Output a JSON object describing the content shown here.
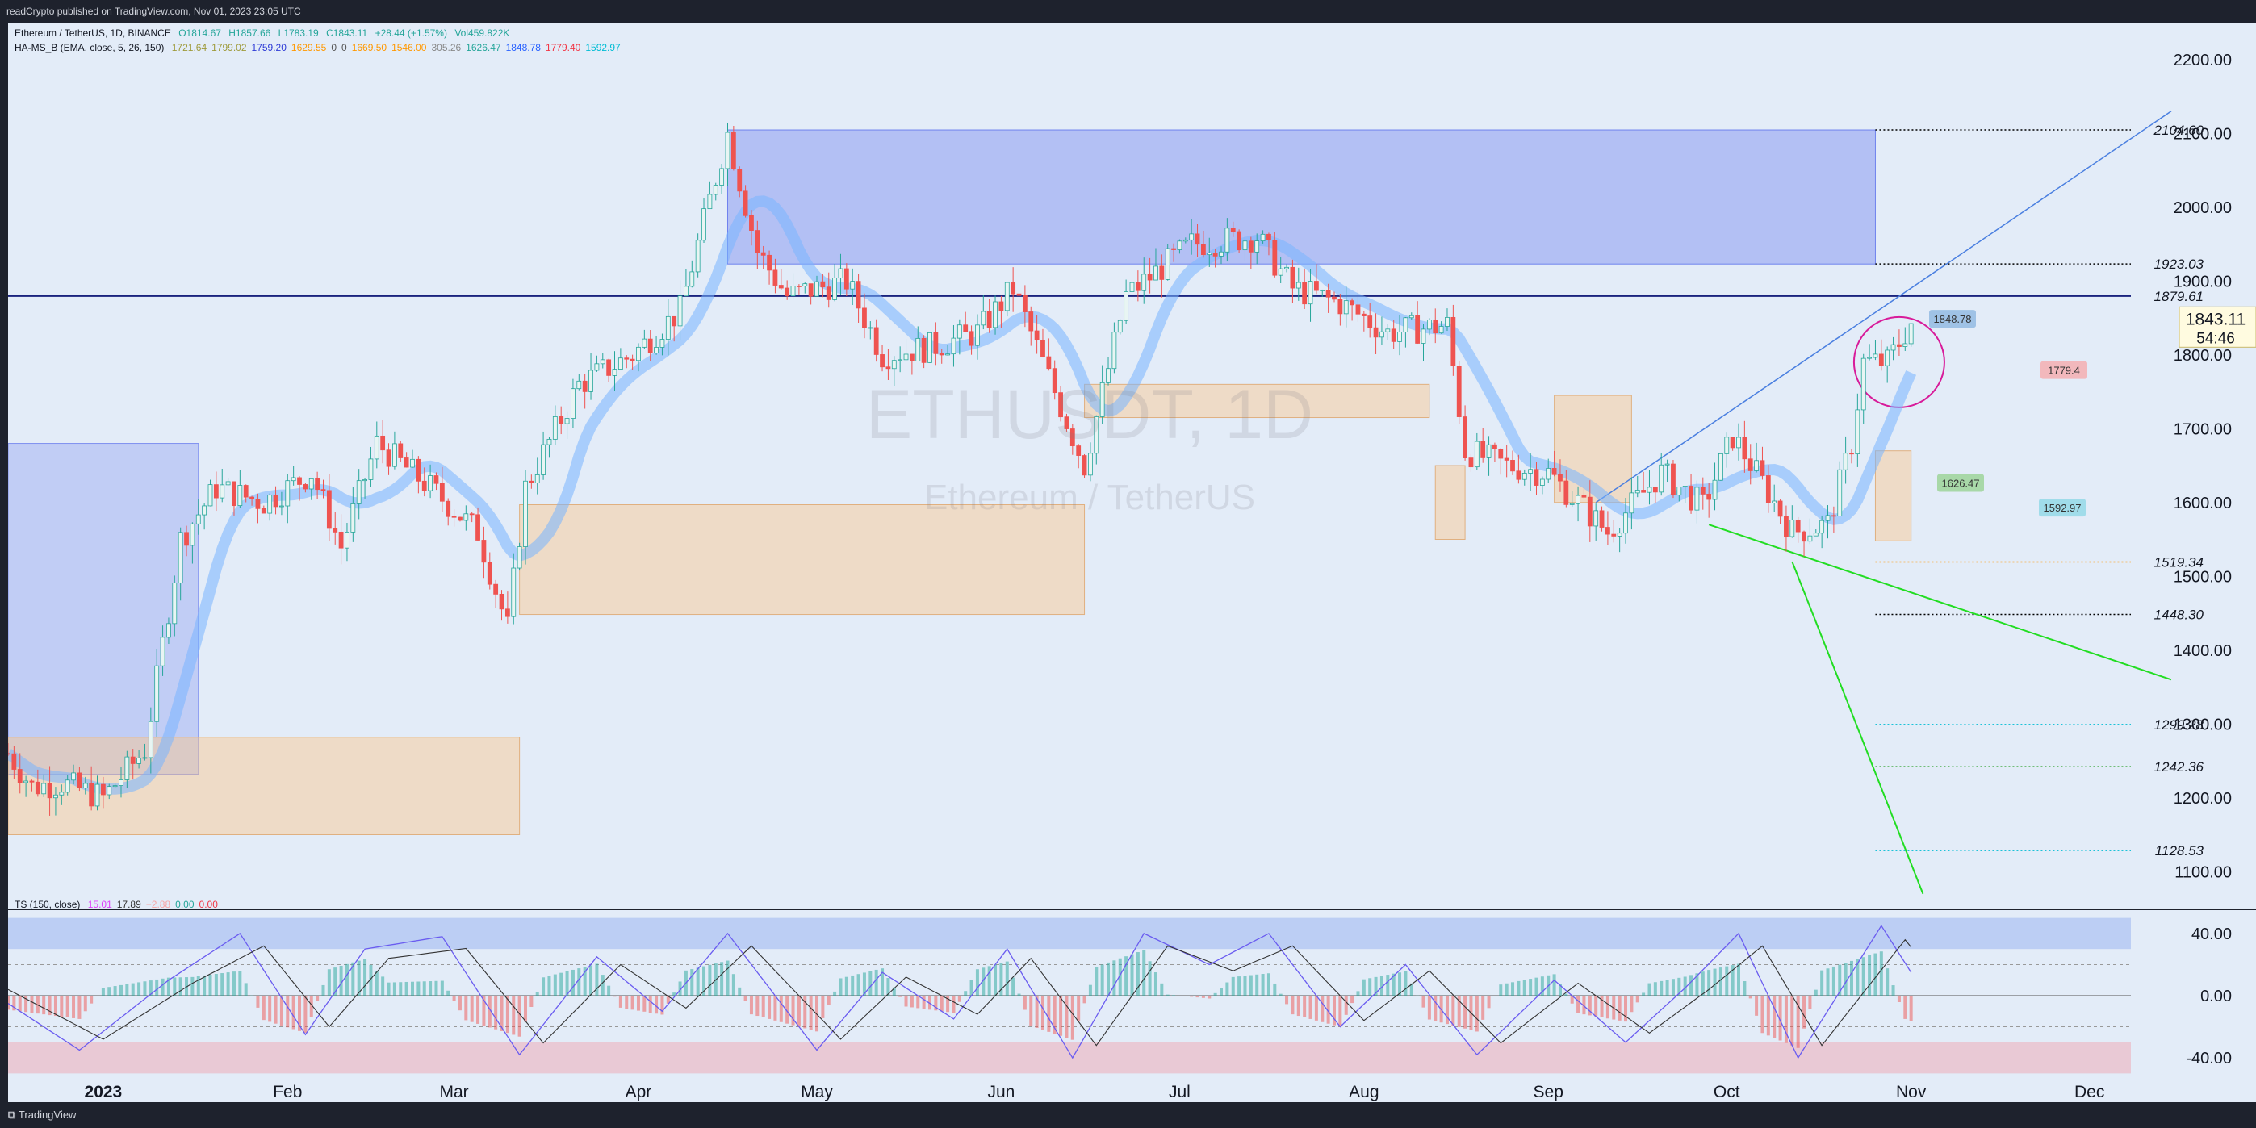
{
  "header": {
    "published": "readCrypto published on TradingView.com, Nov 01, 2023 23:05 UTC"
  },
  "footer": {
    "brand": "TradingView"
  },
  "legend": {
    "symbol": "Ethereum / TetherUS, 1D, BINANCE",
    "open": "O1814.67",
    "high": "H1857.66",
    "low": "L1783.19",
    "close": "C1843.11",
    "change": "+28.44 (+1.57%)",
    "volume": "Vol459.822K",
    "indicator_name": "HA-MS_B (EMA, close, 5, 26, 150)",
    "indicator_values": [
      {
        "text": "1721.64",
        "color": "#9e9a3a"
      },
      {
        "text": "1799.02",
        "color": "#9e9a3a"
      },
      {
        "text": "1759.20",
        "color": "#2e3bd6"
      },
      {
        "text": "1629.55",
        "color": "#ff9800"
      },
      {
        "text": "0",
        "color": "#555"
      },
      {
        "text": "0",
        "color": "#555"
      },
      {
        "text": "1669.50",
        "color": "#ff9800"
      },
      {
        "text": "1546.00",
        "color": "#ff9800"
      },
      {
        "text": "305.26",
        "color": "#888"
      },
      {
        "text": "1626.47",
        "color": "#26a69a"
      },
      {
        "text": "1848.78",
        "color": "#2962ff"
      },
      {
        "text": "1779.40",
        "color": "#f23645"
      },
      {
        "text": "1592.97",
        "color": "#00bcd4"
      }
    ],
    "osc_name": "TS (150, close)",
    "osc_values": [
      {
        "text": "15.01",
        "color": "#e040fb"
      },
      {
        "text": "17.89",
        "color": "#333"
      },
      {
        "text": "−2.88",
        "color": "#f7a6a6"
      },
      {
        "text": "0.00",
        "color": "#26a69a"
      },
      {
        "text": "0.00",
        "color": "#f23645"
      }
    ]
  },
  "watermark": {
    "symbol": "ETHUSDT, 1D",
    "name": "Ethereum / TetherUS"
  },
  "last_price": {
    "value": "1843.11",
    "countdown": "54:46"
  },
  "chart_data": {
    "type": "candlestick",
    "yaxis": {
      "ylim": [
        1050,
        2250
      ],
      "ticks": [
        "1100.00",
        "1200.00",
        "1300.00",
        "1400.00",
        "1500.00",
        "1600.00",
        "1700.00",
        "1800.00",
        "1900.00",
        "2000.00",
        "2100.00",
        "2200.00"
      ]
    },
    "xaxis": {
      "range": [
        "2022-12-16",
        "2023-12-10"
      ],
      "ticks": [
        {
          "date": "2023-01-01",
          "label": "2023"
        },
        {
          "date": "2023-02-01",
          "label": "Feb"
        },
        {
          "date": "2023-03-01",
          "label": "Mar"
        },
        {
          "date": "2023-04-01",
          "label": "Apr"
        },
        {
          "date": "2023-05-01",
          "label": "May"
        },
        {
          "date": "2023-06-01",
          "label": "Jun"
        },
        {
          "date": "2023-07-01",
          "label": "Jul"
        },
        {
          "date": "2023-08-01",
          "label": "Aug"
        },
        {
          "date": "2023-09-01",
          "label": "Sep"
        },
        {
          "date": "2023-10-01",
          "label": "Oct"
        },
        {
          "date": "2023-11-01",
          "label": "Nov"
        },
        {
          "date": "2023-12-01",
          "label": "Dec"
        }
      ]
    },
    "price_path": [
      [
        "2022-12-16",
        1260
      ],
      [
        "2022-12-20",
        1215
      ],
      [
        "2022-12-25",
        1220
      ],
      [
        "2023-01-01",
        1200
      ],
      [
        "2023-01-08",
        1265
      ],
      [
        "2023-01-14",
        1550
      ],
      [
        "2023-01-20",
        1620
      ],
      [
        "2023-01-28",
        1600
      ],
      [
        "2023-02-05",
        1640
      ],
      [
        "2023-02-10",
        1540
      ],
      [
        "2023-02-16",
        1680
      ],
      [
        "2023-02-25",
        1620
      ],
      [
        "2023-03-05",
        1560
      ],
      [
        "2023-03-10",
        1430
      ],
      [
        "2023-03-13",
        1620
      ],
      [
        "2023-03-22",
        1760
      ],
      [
        "2023-03-31",
        1800
      ],
      [
        "2023-04-08",
        1860
      ],
      [
        "2023-04-13",
        2010
      ],
      [
        "2023-04-16",
        2100
      ],
      [
        "2023-04-21",
        1940
      ],
      [
        "2023-04-26",
        1880
      ],
      [
        "2023-05-06",
        1900
      ],
      [
        "2023-05-12",
        1800
      ],
      [
        "2023-05-20",
        1810
      ],
      [
        "2023-05-28",
        1830
      ],
      [
        "2023-06-03",
        1890
      ],
      [
        "2023-06-10",
        1750
      ],
      [
        "2023-06-15",
        1650
      ],
      [
        "2023-06-22",
        1880
      ],
      [
        "2023-07-03",
        1950
      ],
      [
        "2023-07-14",
        1960
      ],
      [
        "2023-07-20",
        1890
      ],
      [
        "2023-07-28",
        1870
      ],
      [
        "2023-08-05",
        1830
      ],
      [
        "2023-08-15",
        1840
      ],
      [
        "2023-08-18",
        1670
      ],
      [
        "2023-08-25",
        1650
      ],
      [
        "2023-09-01",
        1640
      ],
      [
        "2023-09-11",
        1560
      ],
      [
        "2023-09-20",
        1640
      ],
      [
        "2023-09-27",
        1595
      ],
      [
        "2023-10-02",
        1690
      ],
      [
        "2023-10-06",
        1640
      ],
      [
        "2023-10-12",
        1560
      ],
      [
        "2023-10-18",
        1570
      ],
      [
        "2023-10-22",
        1680
      ],
      [
        "2023-10-24",
        1790
      ],
      [
        "2023-10-28",
        1790
      ],
      [
        "2023-11-01",
        1843
      ]
    ],
    "price_labels": [
      "2104.60",
      "1923.03",
      "1879.61",
      "1519.34",
      "1448.30",
      "1299.28",
      "1242.36",
      "1128.53"
    ],
    "marker_labels": [
      {
        "text": "1848.78",
        "color": "#9fc2e6"
      },
      {
        "text": "1779.4",
        "color": "#f2b8bc"
      },
      {
        "text": "1626.47",
        "color": "#a8d8a8"
      },
      {
        "text": "1592.97",
        "color": "#a0dcea"
      }
    ],
    "oscillator": {
      "ylim": [
        -55,
        55
      ],
      "ticks": [
        "40.00",
        "0.00",
        "-40.00"
      ],
      "fast_line": [
        [
          "2022-12-16",
          -5
        ],
        [
          "2022-12-28",
          -35
        ],
        [
          "2023-01-12",
          10
        ],
        [
          "2023-01-24",
          40
        ],
        [
          "2023-02-04",
          -25
        ],
        [
          "2023-02-14",
          30
        ],
        [
          "2023-02-27",
          38
        ],
        [
          "2023-03-12",
          -38
        ],
        [
          "2023-03-25",
          25
        ],
        [
          "2023-04-05",
          -10
        ],
        [
          "2023-04-16",
          40
        ],
        [
          "2023-05-01",
          -35
        ],
        [
          "2023-05-12",
          15
        ],
        [
          "2023-05-24",
          -15
        ],
        [
          "2023-06-02",
          30
        ],
        [
          "2023-06-13",
          -40
        ],
        [
          "2023-06-25",
          40
        ],
        [
          "2023-07-06",
          20
        ],
        [
          "2023-07-16",
          40
        ],
        [
          "2023-07-28",
          -20
        ],
        [
          "2023-08-08",
          20
        ],
        [
          "2023-08-20",
          -38
        ],
        [
          "2023-09-02",
          10
        ],
        [
          "2023-09-14",
          -30
        ],
        [
          "2023-09-24",
          5
        ],
        [
          "2023-10-03",
          40
        ],
        [
          "2023-10-13",
          -40
        ],
        [
          "2023-10-27",
          45
        ],
        [
          "2023-11-01",
          15
        ]
      ]
    }
  }
}
